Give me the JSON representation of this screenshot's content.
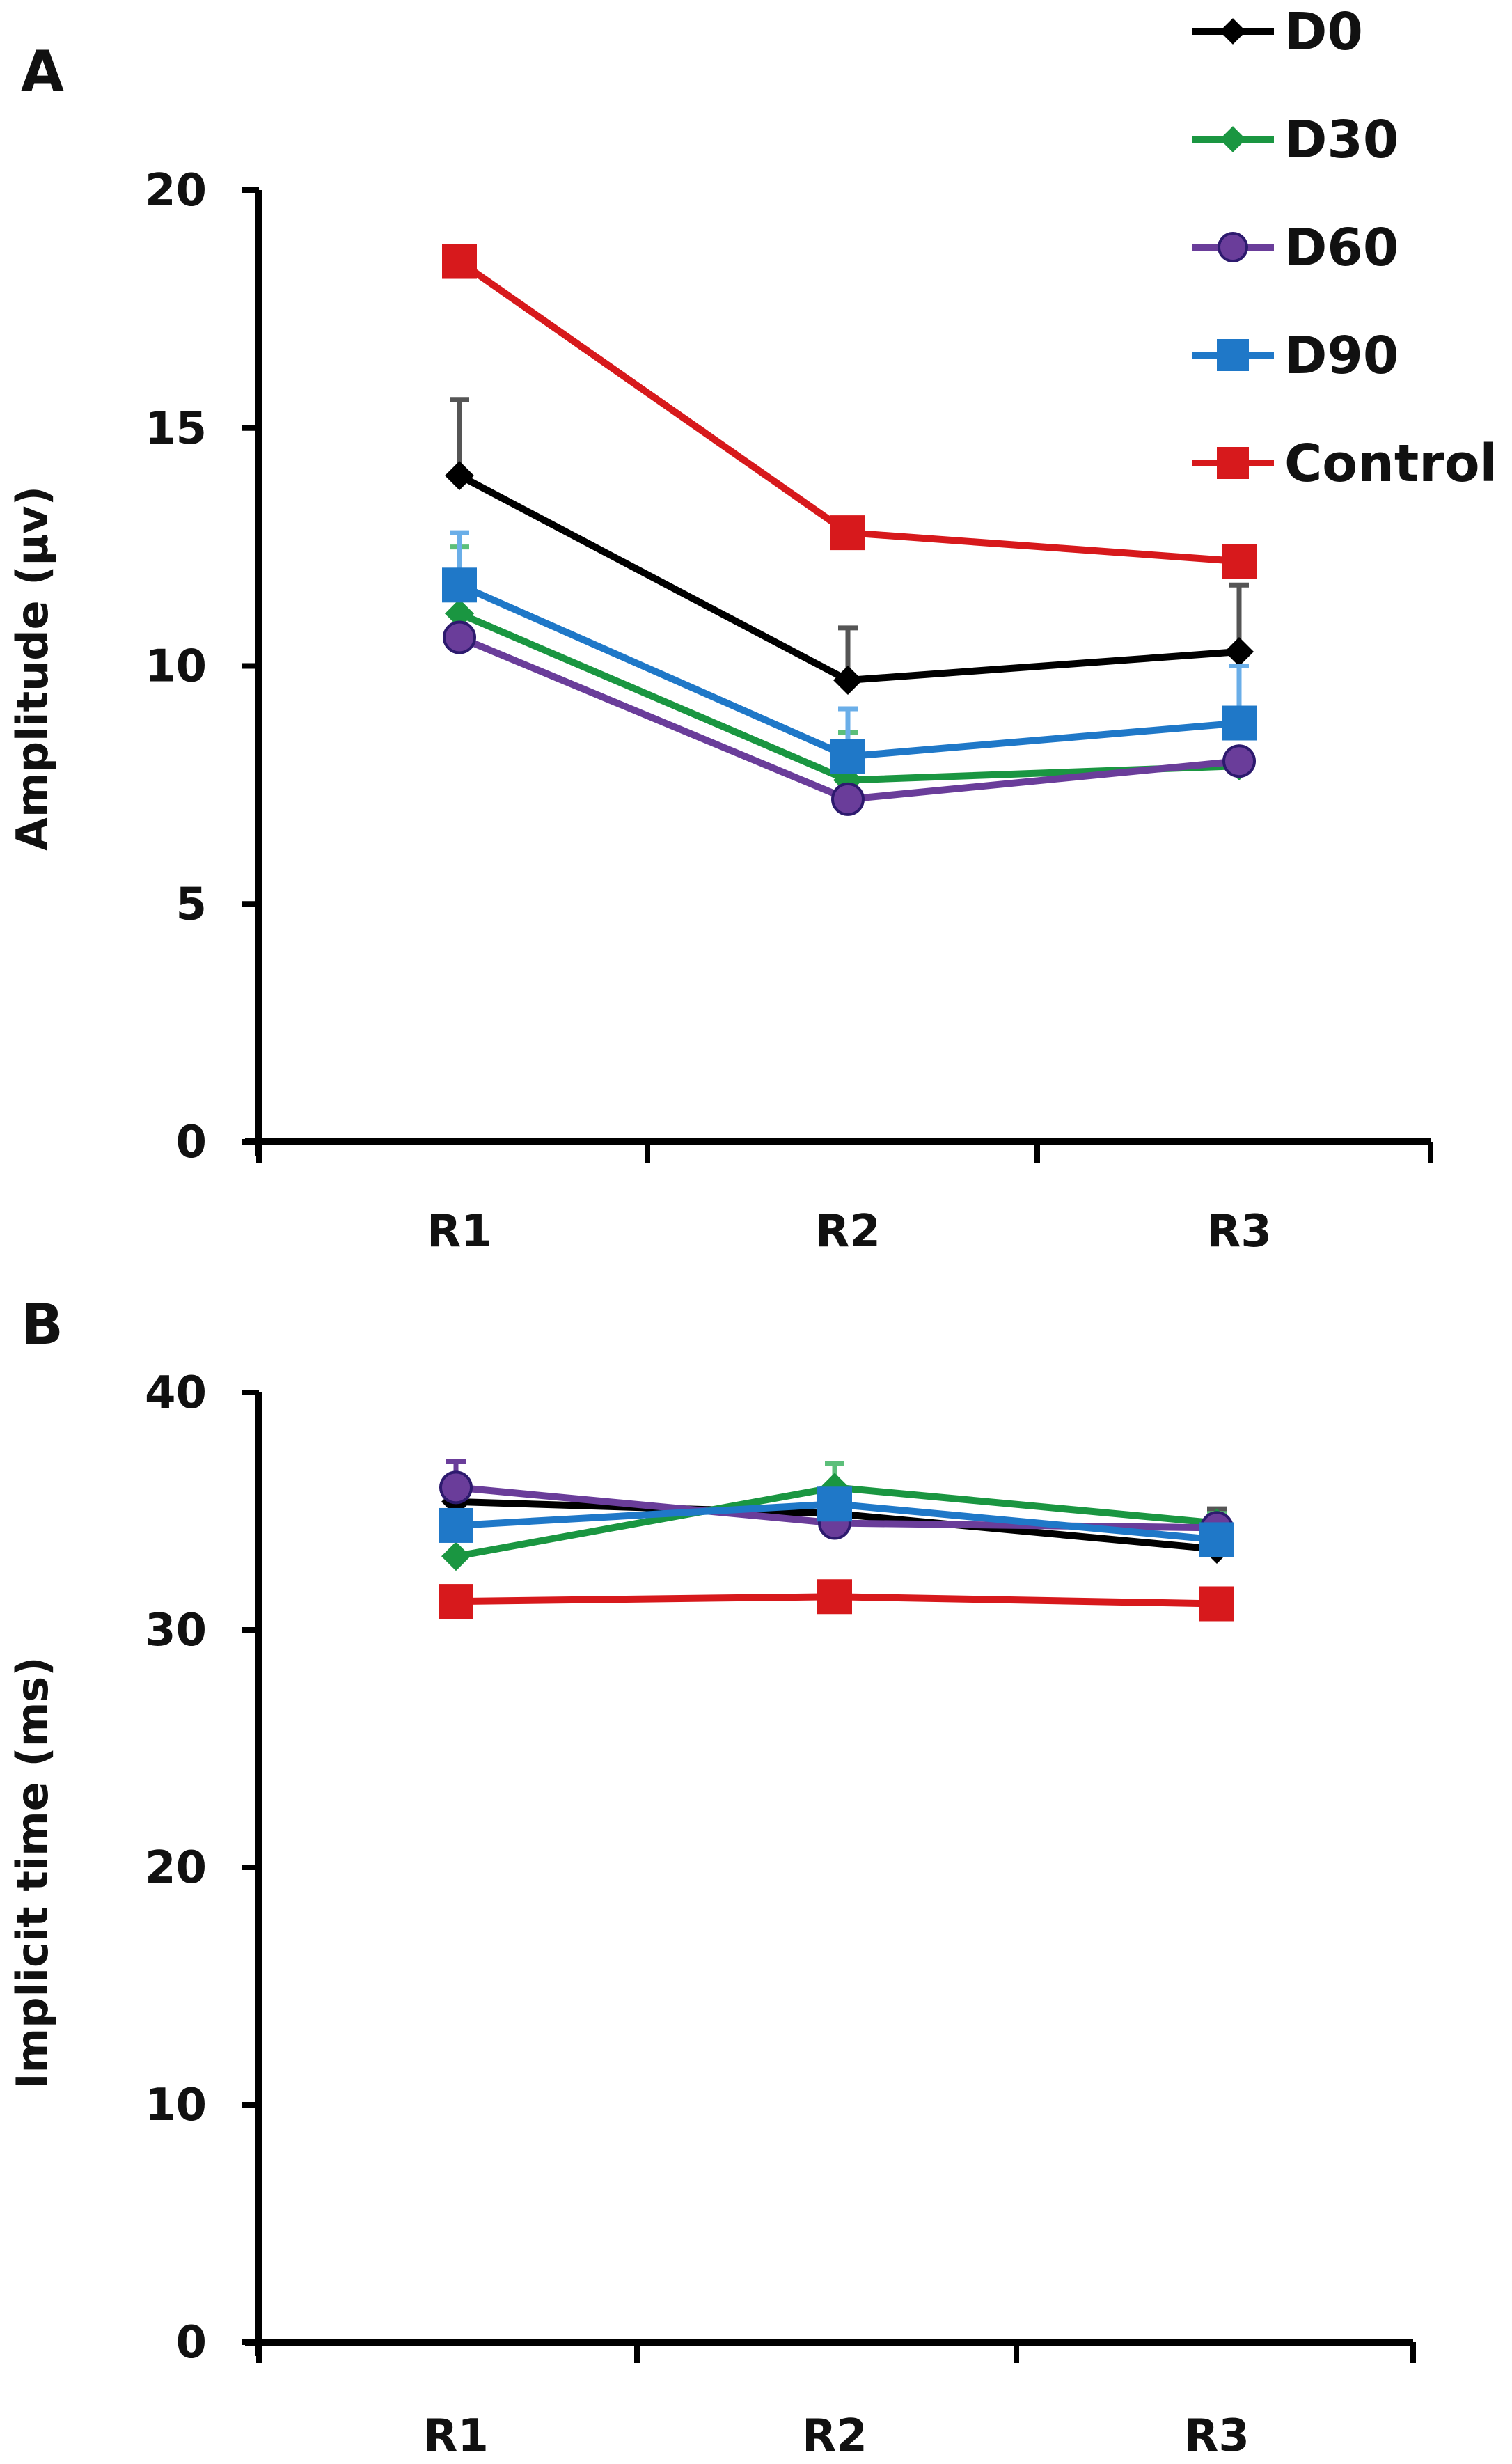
{
  "chart_data": [
    {
      "panel": "A",
      "type": "line",
      "title": "",
      "xlabel": "",
      "ylabel": "Amplitude (µv)",
      "categories": [
        "R1",
        "R2",
        "R3"
      ],
      "ylim": [
        0,
        20
      ],
      "yticks": [
        0,
        5,
        10,
        15,
        20
      ],
      "grid": false,
      "legend_position": "top-right",
      "series": [
        {
          "name": "D0",
          "color": "#000000",
          "marker": "diamond",
          "values": [
            14.0,
            9.7,
            10.3
          ],
          "error_upper": [
            1.6,
            1.1,
            1.4
          ]
        },
        {
          "name": "D30",
          "color": "#1a9641",
          "marker": "diamond",
          "values": [
            11.1,
            7.6,
            7.9
          ],
          "error_upper": [
            1.4,
            1.0,
            0
          ]
        },
        {
          "name": "D60",
          "color": "#6a3d9a",
          "marker": "circle",
          "values": [
            10.6,
            7.2,
            8.0
          ],
          "error_upper": [
            0,
            0,
            0
          ]
        },
        {
          "name": "D90",
          "color": "#1f78c8",
          "marker": "square",
          "values": [
            11.7,
            8.1,
            8.8
          ],
          "error_upper": [
            1.1,
            1.0,
            1.2
          ]
        },
        {
          "name": "Control",
          "color": "#d7191c",
          "marker": "square",
          "values": [
            18.5,
            12.8,
            12.2
          ],
          "error_upper": [
            0.2,
            0,
            0
          ]
        }
      ]
    },
    {
      "panel": "B",
      "type": "line",
      "title": "",
      "xlabel": "",
      "ylabel": "Implicit time (ms)",
      "categories": [
        "R1",
        "R2",
        "R3"
      ],
      "ylim": [
        0,
        40
      ],
      "yticks": [
        0,
        10,
        20,
        30,
        40
      ],
      "grid": false,
      "legend_position": "none",
      "series": [
        {
          "name": "D0",
          "color": "#000000",
          "marker": "diamond",
          "values": [
            35.4,
            34.9,
            33.4
          ],
          "error_upper": [
            0,
            0,
            1.7
          ]
        },
        {
          "name": "D30",
          "color": "#1a9641",
          "marker": "diamond",
          "values": [
            33.1,
            36.0,
            34.5
          ],
          "error_upper": [
            0,
            1.0,
            0.4
          ]
        },
        {
          "name": "D60",
          "color": "#6a3d9a",
          "marker": "circle",
          "values": [
            36.0,
            34.5,
            34.3
          ],
          "error_upper": [
            1.1,
            0,
            0
          ]
        },
        {
          "name": "D90",
          "color": "#1f78c8",
          "marker": "square",
          "values": [
            34.4,
            35.3,
            33.8
          ],
          "error_upper": [
            0,
            0,
            0
          ]
        },
        {
          "name": "Control",
          "color": "#d7191c",
          "marker": "square",
          "values": [
            31.2,
            31.4,
            31.1
          ],
          "error_upper": [
            0,
            0,
            0
          ]
        }
      ]
    }
  ],
  "panels": {
    "a_label": "A",
    "b_label": "B"
  },
  "legend": [
    {
      "label": "D0",
      "color": "#000000",
      "marker": "diamond"
    },
    {
      "label": "D30",
      "color": "#1a9641",
      "marker": "diamond"
    },
    {
      "label": "D60",
      "color": "#6a3d9a",
      "marker": "circle"
    },
    {
      "label": "D90",
      "color": "#1f78c8",
      "marker": "square"
    },
    {
      "label": "Control",
      "color": "#d7191c",
      "marker": "square"
    }
  ]
}
